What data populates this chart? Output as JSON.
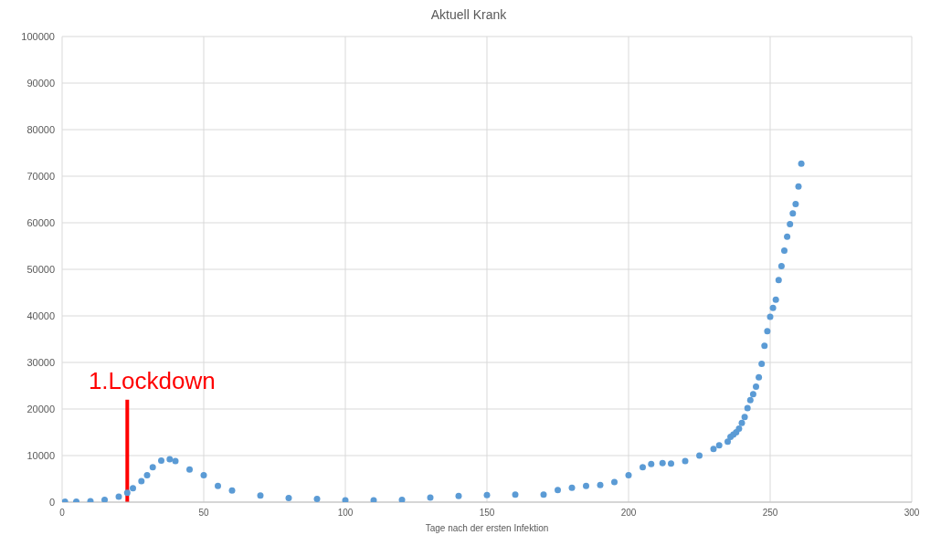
{
  "chart_data": {
    "type": "scatter",
    "title": "Aktuell Krank",
    "xlabel": "Tage nach der ersten Infektion",
    "x": [
      1,
      5,
      10,
      15,
      20,
      23,
      25,
      28,
      30,
      32,
      35,
      38,
      40,
      45,
      50,
      55,
      60,
      70,
      80,
      90,
      100,
      110,
      120,
      130,
      140,
      150,
      160,
      170,
      175,
      180,
      185,
      190,
      195,
      200,
      205,
      208,
      212,
      215,
      220,
      225,
      230,
      232,
      235,
      236,
      237,
      238,
      239,
      240,
      241,
      242,
      243,
      244,
      245,
      246,
      247,
      248,
      249,
      250,
      251,
      252,
      253,
      254,
      255,
      256,
      257,
      258,
      259,
      260,
      261
    ],
    "series": [
      {
        "color": "#5b9bd5",
        "values": [
          100,
          100,
          200,
          500,
          1200,
          2000,
          3000,
          4500,
          5800,
          7500,
          8900,
          9200,
          8800,
          7000,
          5800,
          3500,
          2500,
          1400,
          900,
          700,
          400,
          400,
          500,
          1000,
          1300,
          1500,
          1600,
          1600,
          2600,
          3100,
          3500,
          3700,
          4300,
          5800,
          7500,
          8200,
          8400,
          8300,
          8800,
          10000,
          11400,
          12200,
          13000,
          14000,
          14500,
          15000,
          15800,
          17000,
          18300,
          20200,
          21900,
          23200,
          24800,
          26800,
          29700,
          33600,
          36700,
          39800,
          41700,
          43500,
          47700,
          50700,
          54000,
          57000,
          59700,
          62000,
          64000,
          67800,
          72700
        ]
      }
    ],
    "xlim": [
      0,
      300
    ],
    "xticks": [
      0,
      50,
      100,
      150,
      200,
      250,
      300
    ],
    "ylim": [
      0,
      100000
    ],
    "yticks": [
      0,
      10000,
      20000,
      30000,
      40000,
      50000,
      60000,
      70000,
      80000,
      90000,
      100000
    ],
    "grid": true,
    "marker": "circle",
    "ref_lines": [
      {
        "axis": "x",
        "value": 23,
        "label": "1.Lockdown",
        "color": "#ff0000"
      }
    ]
  }
}
